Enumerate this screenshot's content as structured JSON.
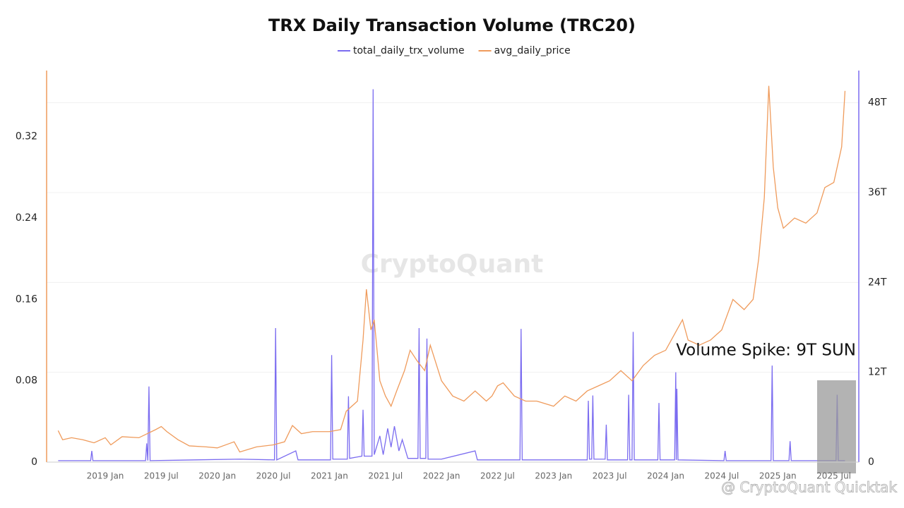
{
  "chart_data": {
    "type": "line",
    "title": "TRX Daily Transaction Volume (TRC20)",
    "watermark": "CryptoQuant",
    "footer": "@ CryptoQuant Quicktak",
    "annotation": "Volume Spike: 9T SUN",
    "grid": true,
    "xlim": [
      2018.477,
      2025.723
    ],
    "xticks": [
      {
        "value": 2019,
        "label": "2019 Jan"
      },
      {
        "value": 2019.5,
        "label": "2019 Jul"
      },
      {
        "value": 2020,
        "label": "2020 Jan"
      },
      {
        "value": 2020.5,
        "label": "2020 Jul"
      },
      {
        "value": 2021,
        "label": "2021 Jan"
      },
      {
        "value": 2021.5,
        "label": "2021 Jul"
      },
      {
        "value": 2022,
        "label": "2022 Jan"
      },
      {
        "value": 2022.5,
        "label": "2022 Jul"
      },
      {
        "value": 2023,
        "label": "2023 Jan"
      },
      {
        "value": 2023.5,
        "label": "2023 Jul"
      },
      {
        "value": 2024,
        "label": "2024 Jan"
      },
      {
        "value": 2024.5,
        "label": "2024 Jul"
      },
      {
        "value": 2025,
        "label": "2025 Jan"
      },
      {
        "value": 2025.5,
        "label": "2025 Jul"
      }
    ],
    "ylim": [
      0,
      0.385
    ],
    "yticks": [
      0,
      0.08,
      0.16,
      0.24,
      0.32
    ],
    "y2lim": [
      0,
      52.3
    ],
    "y2ticks": [
      0,
      {
        "value": 12,
        "label": "12T"
      },
      {
        "value": 24,
        "label": "24T"
      },
      {
        "value": 36,
        "label": "36T"
      },
      {
        "value": 48,
        "label": "48T"
      }
    ],
    "series": [
      {
        "name": "total_daily_trx_volume",
        "color": "#7b6cf0",
        "axis": "y2",
        "x": [
          2018.58,
          2018.87,
          2018.88,
          2018.89,
          2019.36,
          2019.37,
          2019.38,
          2019.39,
          2019.4,
          2019.8,
          2020.2,
          2020.51,
          2020.52,
          2020.53,
          2020.7,
          2020.72,
          2021.01,
          2021.02,
          2021.03,
          2021.16,
          2021.17,
          2021.18,
          2021.29,
          2021.3,
          2021.31,
          2021.38,
          2021.39,
          2021.4,
          2021.45,
          2021.48,
          2021.52,
          2021.55,
          2021.58,
          2021.62,
          2021.65,
          2021.7,
          2021.79,
          2021.8,
          2021.81,
          2021.86,
          2021.87,
          2021.88,
          2022.0,
          2022.3,
          2022.32,
          2022.7,
          2022.71,
          2022.72,
          2023.0,
          2023.3,
          2023.31,
          2023.32,
          2023.34,
          2023.35,
          2023.36,
          2023.46,
          2023.47,
          2023.48,
          2023.66,
          2023.67,
          2023.68,
          2023.7,
          2023.71,
          2023.72,
          2023.93,
          2023.94,
          2023.95,
          2024.08,
          2024.09,
          2024.095,
          2024.1,
          2024.11,
          2024.52,
          2024.53,
          2024.54,
          2024.94,
          2024.95,
          2024.96,
          2025.1,
          2025.11,
          2025.12,
          2025.52,
          2025.53,
          2025.54,
          2025.6
        ],
        "values": [
          0.2,
          0.2,
          1.5,
          0.2,
          0.2,
          2.5,
          0.2,
          10.1,
          0.2,
          0.3,
          0.4,
          0.3,
          17.9,
          0.3,
          1.5,
          0.3,
          0.3,
          14.3,
          0.4,
          0.4,
          8.8,
          0.5,
          0.8,
          7.0,
          0.8,
          0.8,
          49.8,
          1.0,
          3.5,
          1.0,
          4.5,
          2.0,
          4.8,
          1.5,
          3.0,
          0.5,
          0.5,
          17.9,
          0.5,
          0.5,
          16.5,
          0.4,
          0.4,
          1.5,
          0.3,
          0.3,
          17.8,
          0.3,
          0.3,
          0.3,
          8.2,
          0.4,
          0.4,
          8.9,
          0.4,
          0.4,
          5.0,
          0.3,
          0.3,
          9.0,
          0.3,
          0.3,
          17.4,
          0.3,
          0.3,
          7.9,
          0.3,
          0.3,
          12.0,
          0.3,
          9.8,
          0.3,
          0.2,
          1.5,
          0.2,
          0.2,
          12.9,
          0.2,
          0.2,
          2.8,
          0.2,
          0.2,
          9.0,
          0.2,
          0.2
        ]
      },
      {
        "name": "avg_daily_price",
        "color": "#ef9b5c",
        "axis": "y",
        "x": [
          2018.58,
          2018.62,
          2018.7,
          2018.8,
          2018.9,
          2019.0,
          2019.05,
          2019.15,
          2019.3,
          2019.45,
          2019.5,
          2019.55,
          2019.65,
          2019.75,
          2019.9,
          2020.0,
          2020.1,
          2020.15,
          2020.2,
          2020.35,
          2020.5,
          2020.6,
          2020.67,
          2020.75,
          2020.85,
          2021.0,
          2021.1,
          2021.15,
          2021.25,
          2021.3,
          2021.33,
          2021.37,
          2021.4,
          2021.45,
          2021.5,
          2021.55,
          2021.6,
          2021.67,
          2021.72,
          2021.78,
          2021.85,
          2021.9,
          2022.0,
          2022.1,
          2022.2,
          2022.3,
          2022.4,
          2022.45,
          2022.5,
          2022.55,
          2022.65,
          2022.75,
          2022.85,
          2023.0,
          2023.1,
          2023.2,
          2023.3,
          2023.4,
          2023.5,
          2023.6,
          2023.7,
          2023.8,
          2023.9,
          2024.0,
          2024.1,
          2024.15,
          2024.2,
          2024.3,
          2024.4,
          2024.5,
          2024.6,
          2024.7,
          2024.78,
          2024.83,
          2024.88,
          2024.92,
          2024.96,
          2025.0,
          2025.05,
          2025.15,
          2025.25,
          2025.35,
          2025.42,
          2025.5,
          2025.57,
          2025.6
        ],
        "values": [
          0.031,
          0.022,
          0.024,
          0.022,
          0.019,
          0.024,
          0.017,
          0.025,
          0.024,
          0.032,
          0.035,
          0.03,
          0.022,
          0.016,
          0.015,
          0.014,
          0.018,
          0.02,
          0.01,
          0.015,
          0.017,
          0.02,
          0.036,
          0.028,
          0.03,
          0.03,
          0.032,
          0.05,
          0.06,
          0.12,
          0.17,
          0.13,
          0.14,
          0.08,
          0.065,
          0.055,
          0.07,
          0.09,
          0.11,
          0.1,
          0.09,
          0.115,
          0.08,
          0.065,
          0.06,
          0.07,
          0.06,
          0.065,
          0.075,
          0.078,
          0.065,
          0.06,
          0.06,
          0.055,
          0.065,
          0.06,
          0.07,
          0.075,
          0.08,
          0.09,
          0.08,
          0.095,
          0.105,
          0.11,
          0.13,
          0.14,
          0.12,
          0.115,
          0.12,
          0.13,
          0.16,
          0.15,
          0.16,
          0.2,
          0.26,
          0.37,
          0.29,
          0.25,
          0.23,
          0.24,
          0.235,
          0.245,
          0.27,
          0.275,
          0.31,
          0.365
        ]
      }
    ]
  }
}
